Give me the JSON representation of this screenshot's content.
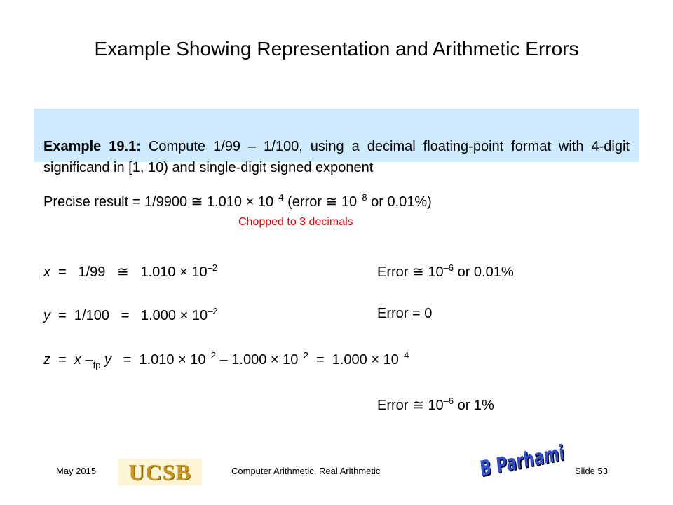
{
  "title": "Example Showing Representation and Arithmetic Errors",
  "example": {
    "label": "Example 19.1:",
    "text": " Compute 1/99 – 1/100, using a decimal floating-point format with 4-digit significand in [1, 10) and single-digit signed exponent"
  },
  "precise": [
    "Precise result = 1/9900 ≅ 1.010 × 10",
    "–4",
    " (error ≅ 10",
    "–8",
    " or 0.01%)"
  ],
  "note": "Chopped to 3 decimals",
  "x_line": {
    "lhs": [
      "x",
      "  =   1/99   ≅   1.010 × 10",
      "–2"
    ],
    "error": [
      "Error ≅ 10",
      "–6",
      " or 0.01%"
    ]
  },
  "y_line": {
    "lhs": [
      "y",
      "  =  1/100   =   1.000 × 10",
      "–2"
    ],
    "error": [
      "Error = 0"
    ]
  },
  "z_line": {
    "lhs": [
      "z",
      "  =  ",
      "x",
      " –",
      "fp",
      " ",
      "y",
      "   =  1.010 × 10",
      "–2",
      " – 1.000 × 10",
      "–2",
      "  =  1.000 × 10",
      "–4"
    ]
  },
  "final_error": [
    "Error ≅ 10",
    "–6",
    " or 1%"
  ],
  "footer": {
    "date": "May 2015",
    "logo": "UCSB",
    "course": "Computer Arithmetic, Real Arithmetic",
    "signature": "B Parhami",
    "slide": "Slide 53"
  }
}
